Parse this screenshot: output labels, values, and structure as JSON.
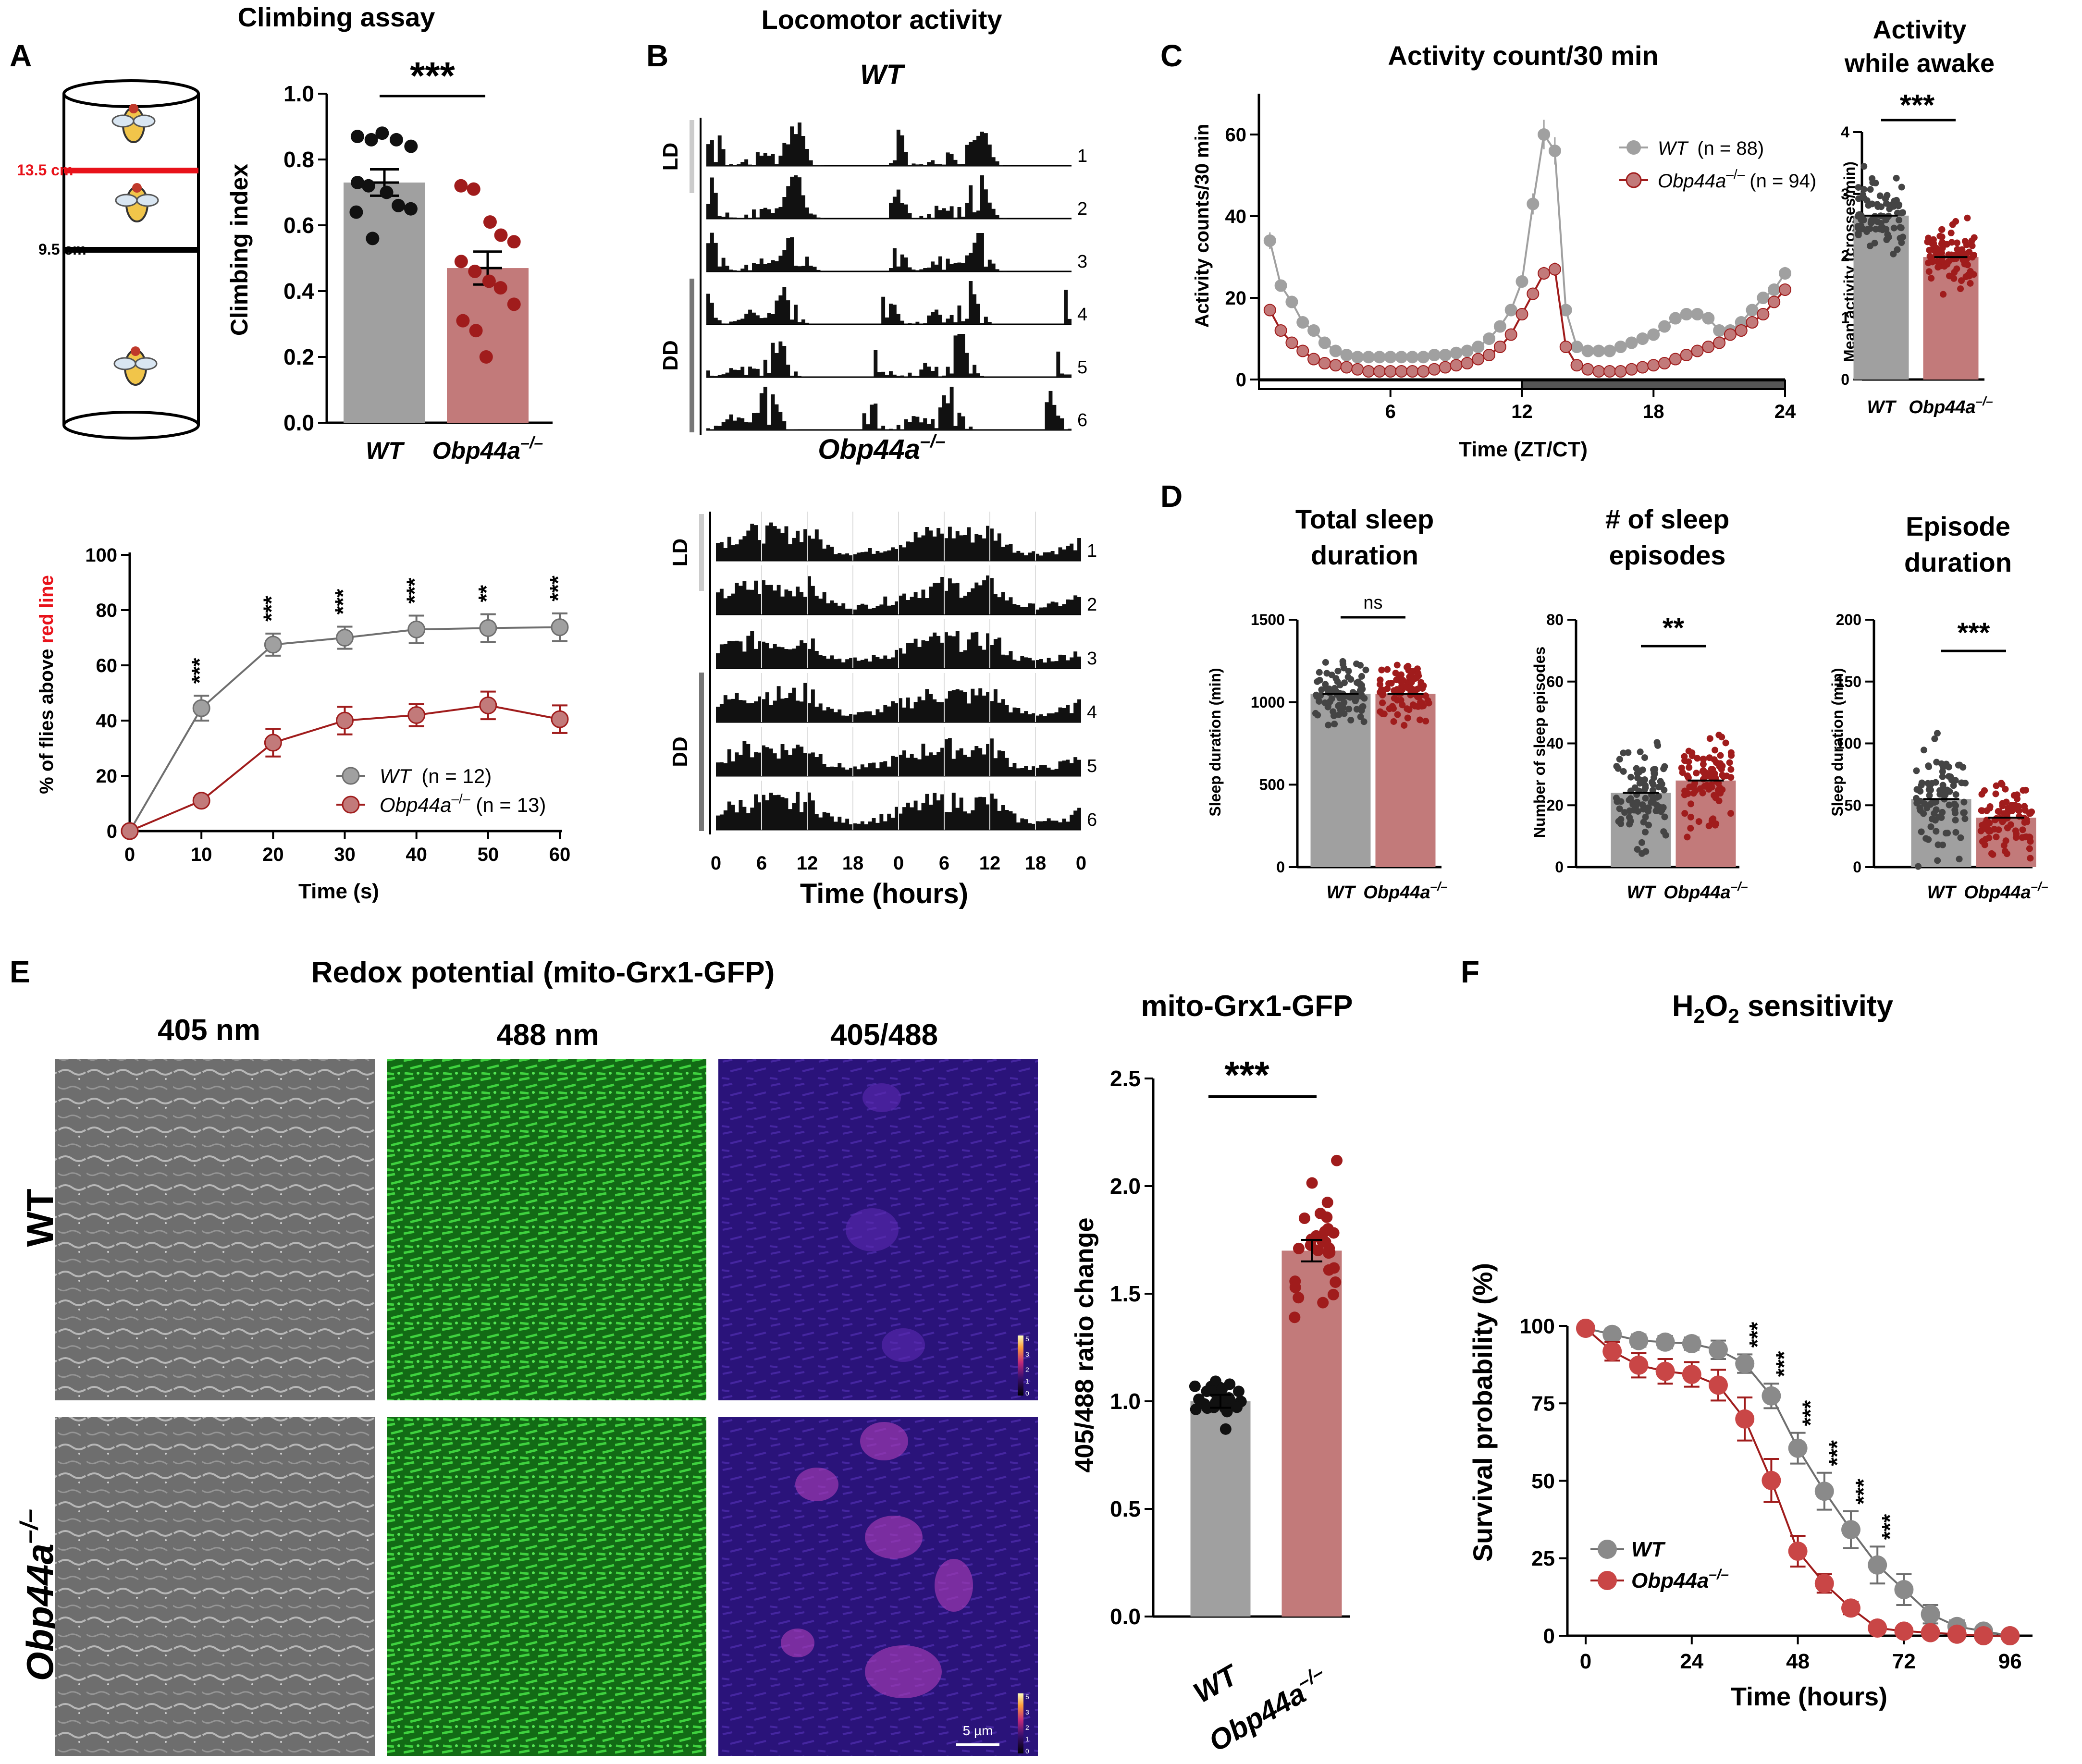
{
  "colors": {
    "wt": "#a0a0a0",
    "wt_dark": "#6f6f6f",
    "mut": "#c27a7a",
    "mut_dark": "#a01c1c",
    "red_line": "#e8121a",
    "green": "#1fae24",
    "ratio_bg": "#2a137a"
  },
  "letters": {
    "A": "A",
    "B": "B",
    "C": "C",
    "D": "D",
    "E": "E",
    "F": "F"
  },
  "geno": {
    "wt": "WT",
    "mut": "Obp44a",
    "sup": "–/–",
    "wt_caps": "WT"
  },
  "panelA": {
    "title": "Climbing assay",
    "sig": "***",
    "tube_red": "13.5 cm",
    "tube_black": "9.5 cm",
    "ylabel": "Climbing index",
    "yticks": [
      "0.0",
      "0.2",
      "0.4",
      "0.6",
      "0.8",
      "1.0"
    ]
  },
  "panelA2": {
    "ylabel_pre": "% of flies above ",
    "ylabel_red": "red line",
    "xlabel": "Time (s)",
    "xticks": [
      "0",
      "10",
      "20",
      "30",
      "40",
      "50",
      "60"
    ],
    "yticks": [
      "0",
      "20",
      "40",
      "60",
      "80",
      "100"
    ],
    "sigs": [
      "***",
      "***",
      "***",
      "***",
      "**",
      "***"
    ],
    "leg_wt_n": "(n = 12)",
    "leg_mut_n": "(n = 13)"
  },
  "panelB": {
    "title": "Locomotor activity",
    "wt_title": "WT",
    "ld": "LD",
    "dd": "DD",
    "rows": [
      "1",
      "2",
      "3",
      "4",
      "5",
      "6"
    ],
    "xticks": [
      "0",
      "6",
      "12",
      "18",
      "0",
      "6",
      "12",
      "18",
      "0"
    ],
    "xlabel": "Time (hours)"
  },
  "panelC": {
    "title": "Activity count/30 min",
    "ylabel": "Activity counts/30 min",
    "xlabel": "Time (ZT/CT)",
    "xticks": [
      "6",
      "12",
      "18",
      "24"
    ],
    "yticks": [
      "0",
      "20",
      "40",
      "60"
    ],
    "leg_wt_n": "(n = 88)",
    "leg_mut_n": "(n = 94)",
    "bar_title_1": "Activity",
    "bar_title_2": "while awake",
    "bar_sig": "***",
    "bar_ylabel": "Mean activity (crosses/min)",
    "bar_yticks": [
      "0",
      "1",
      "2",
      "3",
      "4"
    ]
  },
  "panelD": {
    "t1a": "Total sleep",
    "t1b": "duration",
    "t2a": "# of sleep",
    "t2b": "episodes",
    "t3a": "Episode",
    "t3b": "duration",
    "sig1": "ns",
    "sig2": "**",
    "sig3": "***",
    "y1": "Sleep duration (min)",
    "y2": "Number of sleep episodes",
    "y3": "Sleep duration (min)",
    "y1ticks": [
      "0",
      "500",
      "1000",
      "1500"
    ],
    "y2ticks": [
      "0",
      "20",
      "40",
      "60",
      "80"
    ],
    "y3ticks": [
      "0",
      "50",
      "100",
      "150",
      "200"
    ]
  },
  "panelE": {
    "title": "Redox potential (mito-Grx1-GFP)",
    "col1": "405 nm",
    "col2": "488 nm",
    "col3": "405/488",
    "scale": "5 µm",
    "cbar": [
      "5",
      "3",
      "2",
      "1",
      "0"
    ],
    "bar_title": "mito-Grx1-GFP",
    "sig": "***",
    "ylabel": "405/488 ratio change",
    "yticks": [
      "0.0",
      "0.5",
      "1.0",
      "1.5",
      "2.0",
      "2.5"
    ]
  },
  "panelF": {
    "title_pre": "H",
    "title_sub": "2",
    "title_mid": "O",
    "title_sub2": "2",
    "title_post": " sensitivity",
    "ylabel": "Survival probability (%)",
    "xlabel": "Time (hours)",
    "xticks": [
      "0",
      "24",
      "48",
      "72",
      "96"
    ],
    "yticks": [
      "0",
      "25",
      "50",
      "75",
      "100"
    ],
    "sigs": [
      "***",
      "***",
      "***",
      "***",
      "***",
      "***"
    ]
  },
  "chart_data": [
    {
      "id": "A_bar",
      "type": "bar",
      "categories": [
        "WT",
        "Obp44a–/–"
      ],
      "values": [
        0.73,
        0.47
      ],
      "errors": [
        0.04,
        0.05
      ],
      "ylim": [
        0,
        1
      ],
      "points": [
        [
          0.87,
          0.86,
          0.88,
          0.86,
          0.84,
          0.73,
          0.72,
          0.7,
          0.66,
          0.65,
          0.64,
          0.56
        ],
        [
          0.72,
          0.71,
          0.61,
          0.57,
          0.55,
          0.49,
          0.46,
          0.43,
          0.41,
          0.36,
          0.31,
          0.28,
          0.2
        ]
      ]
    },
    {
      "id": "A_line",
      "type": "line",
      "x": [
        0,
        10,
        20,
        30,
        40,
        50,
        60
      ],
      "ylim": [
        0,
        100
      ],
      "series": [
        {
          "name": "WT",
          "values": [
            0,
            44.5,
            67.5,
            70,
            73,
            73.5,
            73.8
          ],
          "errors": [
            0,
            4.5,
            4,
            4,
            5,
            5,
            5
          ]
        },
        {
          "name": "Obp44a–/–",
          "values": [
            0,
            11,
            32,
            40,
            42,
            45.5,
            40.5
          ],
          "errors": [
            0,
            0,
            5,
            5,
            4,
            5,
            5
          ]
        }
      ]
    },
    {
      "id": "C_line",
      "type": "line",
      "x": [
        0.5,
        1,
        1.5,
        2,
        2.5,
        3,
        3.5,
        4,
        4.5,
        5,
        5.5,
        6,
        6.5,
        7,
        7.5,
        8,
        8.5,
        9,
        9.5,
        10,
        10.5,
        11,
        11.5,
        12,
        12.5,
        13,
        13.5,
        14,
        14.5,
        15,
        15.5,
        16,
        16.5,
        17,
        17.5,
        18,
        18.5,
        19,
        19.5,
        20,
        20.5,
        21,
        21.5,
        22,
        22.5,
        23,
        23.5,
        24
      ],
      "ylim": [
        0,
        70
      ],
      "series": [
        {
          "name": "WT",
          "values": [
            34,
            23,
            19,
            14,
            12,
            9,
            7,
            6,
            5.5,
            5.5,
            5.5,
            5.5,
            5.5,
            5.5,
            5.5,
            6,
            6,
            6.5,
            7,
            8,
            10,
            13,
            17,
            24,
            43,
            60,
            56,
            17,
            8,
            7,
            7,
            7,
            8,
            9,
            10,
            11,
            13,
            15,
            16,
            16,
            15,
            12,
            12,
            14,
            17,
            20,
            22,
            26
          ]
        },
        {
          "name": "Obp44a–/–",
          "values": [
            17,
            12,
            9,
            7,
            5,
            4,
            3.5,
            3,
            2.5,
            2,
            2,
            2,
            2,
            2,
            2,
            2.5,
            3,
            3.5,
            4,
            5,
            6,
            8,
            11,
            16,
            21,
            26,
            27,
            8,
            3.5,
            2.5,
            2,
            2,
            2,
            2.5,
            3,
            3.5,
            4,
            5,
            6,
            7,
            8,
            9,
            11,
            12,
            14,
            16,
            19,
            22
          ]
        }
      ]
    },
    {
      "id": "C_bar",
      "type": "bar",
      "categories": [
        "WT",
        "Obp44a–/–"
      ],
      "values": [
        2.65,
        1.98
      ],
      "ylim": [
        0,
        4
      ]
    },
    {
      "id": "D_total",
      "type": "bar",
      "categories": [
        "WT",
        "Obp44a–/–"
      ],
      "values": [
        1050,
        1050
      ],
      "ylim": [
        0,
        1500
      ]
    },
    {
      "id": "D_episodes",
      "type": "bar",
      "categories": [
        "WT",
        "Obp44a–/–"
      ],
      "values": [
        24,
        28
      ],
      "ylim": [
        0,
        80
      ]
    },
    {
      "id": "D_episode_dur",
      "type": "bar",
      "categories": [
        "WT",
        "Obp44a–/–"
      ],
      "values": [
        55,
        40
      ],
      "ylim": [
        0,
        200
      ]
    },
    {
      "id": "E_bar",
      "type": "bar",
      "categories": [
        "WT",
        "Obp44a–/–"
      ],
      "values": [
        1.0,
        1.7
      ],
      "errors": [
        0.03,
        0.05
      ],
      "ylim": [
        0,
        2.5
      ]
    },
    {
      "id": "F_line",
      "type": "line",
      "x": [
        0,
        6,
        12,
        18,
        24,
        30,
        36,
        42,
        48,
        54,
        60,
        66,
        72,
        78,
        84,
        90,
        96
      ],
      "ylim": [
        0,
        100
      ],
      "series": [
        {
          "name": "WT",
          "values": [
            100,
            98,
            96,
            95.5,
            95,
            93,
            88.5,
            78,
            61,
            47,
            34.5,
            23,
            15,
            7,
            3,
            1.5,
            0
          ],
          "errors": [
            0,
            1.5,
            2,
            2,
            2,
            3,
            3,
            4,
            5,
            6,
            6,
            6,
            5,
            3,
            2,
            1,
            0
          ]
        },
        {
          "name": "Obp44a–/–",
          "values": [
            100,
            92.5,
            88,
            86,
            85,
            81.5,
            70.5,
            50.5,
            27.5,
            17,
            9,
            2.5,
            1.5,
            1,
            0.5,
            0,
            0
          ],
          "errors": [
            0,
            3,
            4,
            4,
            4,
            5,
            7,
            7,
            5,
            3,
            2,
            1,
            0.5,
            0.5,
            0,
            0,
            0
          ]
        }
      ]
    }
  ]
}
